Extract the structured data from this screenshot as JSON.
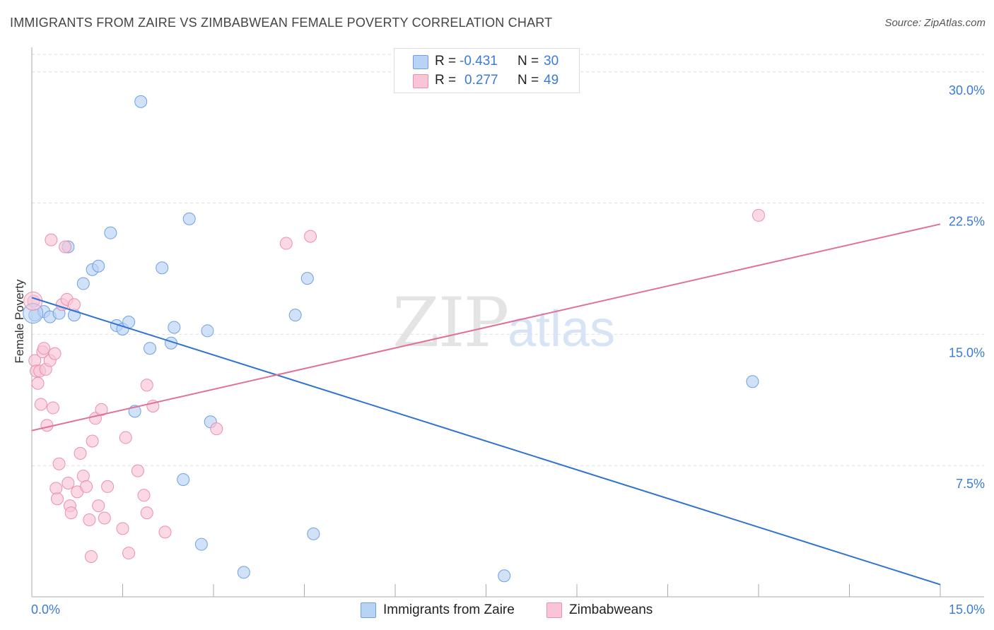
{
  "header": {
    "title": "IMMIGRANTS FROM ZAIRE VS ZIMBABWEAN FEMALE POVERTY CORRELATION CHART",
    "source": "Source: ZipAtlas.com"
  },
  "legend": {
    "series1": {
      "r_label": "R =",
      "r_value": "-0.431",
      "n_label": "N =",
      "n_value": "30"
    },
    "series2": {
      "r_label": "R =",
      "r_value": "0.277",
      "n_label": "N =",
      "n_value": "49"
    }
  },
  "colors": {
    "blue_fill": "#b8d3f5",
    "blue_stroke": "#6fa0e0",
    "blue_line": "#2f73d0",
    "pink_fill": "#f8c4d6",
    "pink_stroke": "#eb8fae",
    "pink_line": "#e0709a",
    "axis_label": "#3a7bd5",
    "grid": "#dddddd"
  },
  "watermark": {
    "zip": "ZIP",
    "atlas": "atlas"
  },
  "chart_data": {
    "type": "scatter",
    "title": "IMMIGRANTS FROM ZAIRE VS ZIMBABWEAN FEMALE POVERTY CORRELATION CHART",
    "xlabel": "",
    "ylabel": "Female Poverty",
    "xlim": [
      0,
      15
    ],
    "ylim": [
      0,
      31
    ],
    "x_tick_labels": [
      "0.0%",
      "15.0%"
    ],
    "y_ticks": [
      7.5,
      15.0,
      22.5,
      30.0
    ],
    "y_tick_labels": [
      "7.5%",
      "15.0%",
      "22.5%",
      "30.0%"
    ],
    "legend_position": "top-center",
    "series": [
      {
        "name": "Immigrants from Zaire",
        "r": -0.431,
        "n": 30,
        "trend": {
          "x": [
            0,
            15
          ],
          "y": [
            17.1,
            0.7
          ]
        },
        "points": [
          {
            "x": 0.05,
            "y": 16.1
          },
          {
            "x": 0.2,
            "y": 16.3
          },
          {
            "x": 0.3,
            "y": 16.0
          },
          {
            "x": 0.45,
            "y": 16.2
          },
          {
            "x": 0.6,
            "y": 20.0
          },
          {
            "x": 0.7,
            "y": 16.1
          },
          {
            "x": 0.85,
            "y": 17.9
          },
          {
            "x": 1.0,
            "y": 18.7
          },
          {
            "x": 1.1,
            "y": 18.9
          },
          {
            "x": 1.3,
            "y": 20.8
          },
          {
            "x": 1.4,
            "y": 15.5
          },
          {
            "x": 1.5,
            "y": 15.3
          },
          {
            "x": 1.6,
            "y": 15.7
          },
          {
            "x": 1.7,
            "y": 10.6
          },
          {
            "x": 1.8,
            "y": 28.3
          },
          {
            "x": 1.95,
            "y": 14.2
          },
          {
            "x": 2.15,
            "y": 18.8
          },
          {
            "x": 2.3,
            "y": 14.5
          },
          {
            "x": 2.35,
            "y": 15.4
          },
          {
            "x": 2.5,
            "y": 6.7
          },
          {
            "x": 2.6,
            "y": 21.6
          },
          {
            "x": 2.8,
            "y": 3.0
          },
          {
            "x": 2.9,
            "y": 15.2
          },
          {
            "x": 2.95,
            "y": 10.0
          },
          {
            "x": 3.5,
            "y": 1.4
          },
          {
            "x": 4.35,
            "y": 16.1
          },
          {
            "x": 4.55,
            "y": 18.2
          },
          {
            "x": 4.65,
            "y": 3.6
          },
          {
            "x": 7.8,
            "y": 1.2
          },
          {
            "x": 11.9,
            "y": 12.3
          }
        ]
      },
      {
        "name": "Zimbabweans",
        "r": 0.277,
        "n": 49,
        "trend": {
          "x": [
            0,
            15
          ],
          "y": [
            9.5,
            21.3
          ]
        },
        "points": [
          {
            "x": 0.03,
            "y": 16.9
          },
          {
            "x": 0.05,
            "y": 13.5
          },
          {
            "x": 0.07,
            "y": 12.9
          },
          {
            "x": 0.1,
            "y": 12.2
          },
          {
            "x": 0.13,
            "y": 12.9
          },
          {
            "x": 0.15,
            "y": 11.0
          },
          {
            "x": 0.18,
            "y": 14.0
          },
          {
            "x": 0.2,
            "y": 14.2
          },
          {
            "x": 0.23,
            "y": 13.0
          },
          {
            "x": 0.25,
            "y": 9.8
          },
          {
            "x": 0.3,
            "y": 13.5
          },
          {
            "x": 0.32,
            "y": 20.4
          },
          {
            "x": 0.35,
            "y": 10.8
          },
          {
            "x": 0.38,
            "y": 13.9
          },
          {
            "x": 0.4,
            "y": 6.2
          },
          {
            "x": 0.42,
            "y": 5.6
          },
          {
            "x": 0.45,
            "y": 7.6
          },
          {
            "x": 0.5,
            "y": 16.7
          },
          {
            "x": 0.55,
            "y": 20.0
          },
          {
            "x": 0.58,
            "y": 17.0
          },
          {
            "x": 0.6,
            "y": 6.5
          },
          {
            "x": 0.63,
            "y": 5.2
          },
          {
            "x": 0.65,
            "y": 4.8
          },
          {
            "x": 0.7,
            "y": 16.7
          },
          {
            "x": 0.75,
            "y": 6.0
          },
          {
            "x": 0.8,
            "y": 8.2
          },
          {
            "x": 0.85,
            "y": 6.9
          },
          {
            "x": 0.9,
            "y": 6.3
          },
          {
            "x": 0.95,
            "y": 4.4
          },
          {
            "x": 0.98,
            "y": 2.3
          },
          {
            "x": 1.0,
            "y": 8.9
          },
          {
            "x": 1.05,
            "y": 10.2
          },
          {
            "x": 1.1,
            "y": 5.2
          },
          {
            "x": 1.15,
            "y": 10.7
          },
          {
            "x": 1.2,
            "y": 4.5
          },
          {
            "x": 1.25,
            "y": 6.3
          },
          {
            "x": 1.5,
            "y": 3.9
          },
          {
            "x": 1.55,
            "y": 9.1
          },
          {
            "x": 1.6,
            "y": 2.5
          },
          {
            "x": 1.75,
            "y": 7.2
          },
          {
            "x": 1.85,
            "y": 5.8
          },
          {
            "x": 1.9,
            "y": 4.8
          },
          {
            "x": 1.9,
            "y": 12.1
          },
          {
            "x": 2.0,
            "y": 10.9
          },
          {
            "x": 2.2,
            "y": 3.7
          },
          {
            "x": 3.05,
            "y": 9.6
          },
          {
            "x": 4.2,
            "y": 20.2
          },
          {
            "x": 4.6,
            "y": 20.6
          },
          {
            "x": 12.0,
            "y": 21.8
          }
        ]
      }
    ]
  }
}
